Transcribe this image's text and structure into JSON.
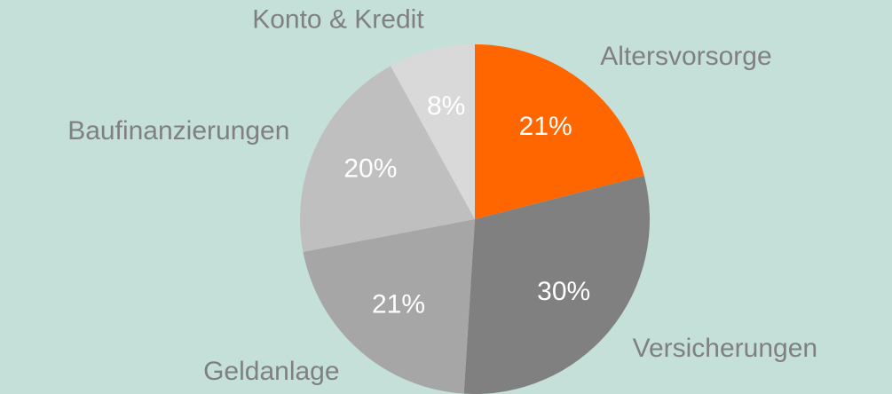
{
  "chart_data": {
    "type": "pie",
    "categories": [
      "Altersvorsorge",
      "Versicherungen",
      "Geldanlage",
      "Baufinanzierungen",
      "Konto & Kredit"
    ],
    "values": [
      21,
      30,
      21,
      20,
      8
    ],
    "value_labels": [
      "21%",
      "30%",
      "21%",
      "20%",
      "8%"
    ],
    "colors": [
      "#ff6600",
      "#808080",
      "#a6a6a6",
      "#bfbfbf",
      "#d9d9d9"
    ]
  }
}
